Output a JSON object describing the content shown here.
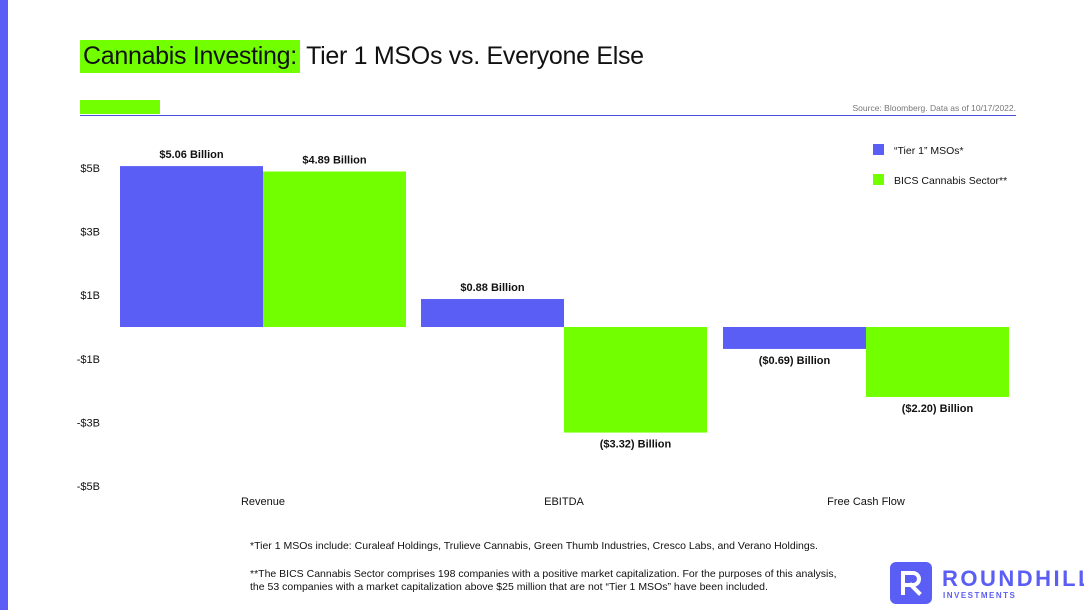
{
  "title": {
    "highlight": "Cannabis Investing:",
    "rest": " Tier 1 MSOs vs. Everyone Else"
  },
  "source": "Source: Bloomberg. Data as of 10/17/2022.",
  "colors": {
    "accent_blue": "#5b5ef4",
    "accent_green": "#72ff00"
  },
  "chart_data": {
    "type": "bar",
    "categories": [
      "Revenue",
      "EBITDA",
      "Free Cash Flow"
    ],
    "series": [
      {
        "name": "“Tier 1” MSOs*",
        "color": "#5b5ef4",
        "values": [
          5.06,
          0.88,
          -0.69
        ],
        "labels": [
          "$5.06 Billion",
          "$0.88 Billion",
          "($0.69) Billion"
        ]
      },
      {
        "name": "BICS Cannabis Sector**",
        "color": "#72ff00",
        "values": [
          4.89,
          -3.32,
          -2.2
        ],
        "labels": [
          "$4.89 Billion",
          "($3.32) Billion",
          "($2.20) Billion"
        ]
      }
    ],
    "yticks": [
      5,
      3,
      1,
      -1,
      -3,
      -5
    ],
    "ytick_labels": [
      "$5B",
      "$3B",
      "$1B",
      "-$1B",
      "-$3B",
      "-$5B"
    ],
    "ylim": [
      -5,
      5
    ],
    "grid": false,
    "legend_position": "top-right"
  },
  "footnotes": {
    "tier1": "*Tier 1 MSOs include: Curaleaf Holdings, Trulieve Cannabis, Green Thumb Industries, Cresco Labs, and Verano Holdings.",
    "bics": "**The BICS Cannabis Sector comprises 198 companies with a positive market capitalization. For the purposes of this analysis, the 53 companies with a market capitalization above $25 million that are not “Tier 1 MSOs” have been included."
  },
  "logo": {
    "name": "ROUNDHILL",
    "sub": "INVESTMENTS",
    "icon": "roundhill-r-icon"
  }
}
